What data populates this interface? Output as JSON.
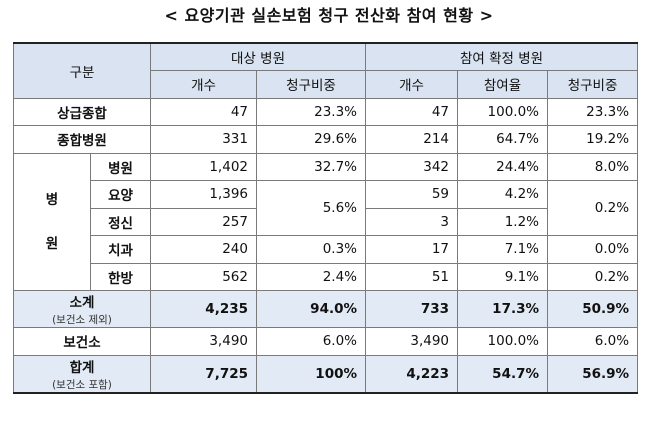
{
  "title": "< 요양기관 실손보험 청구 전산화 참여 현황 >",
  "header": {
    "category": "구분",
    "target_group": "대상 병원",
    "confirmed_group": "참여 확정 병원",
    "count": "개수",
    "claim_share": "청구비중",
    "count2": "개수",
    "participation_rate": "참여율",
    "claim_share2": "청구비중"
  },
  "group_label": [
    "병",
    "원"
  ],
  "rows": {
    "r1": {
      "label": "상급종합",
      "t_count": "47",
      "t_share": "23.3%",
      "c_count": "47",
      "c_rate": "100.0%",
      "c_share": "23.3%"
    },
    "r2": {
      "label": "종합병원",
      "t_count": "331",
      "t_share": "29.6%",
      "c_count": "214",
      "c_rate": "64.7%",
      "c_share": "19.2%"
    },
    "r3": {
      "label": "병원",
      "t_count": "1,402",
      "t_share": "32.7%",
      "c_count": "342",
      "c_rate": "24.4%",
      "c_share": "8.0%"
    },
    "r4": {
      "label": "요양",
      "t_count": "1,396",
      "t_share": "5.6%",
      "c_count": "59",
      "c_rate": "4.2%",
      "c_share": "0.2%"
    },
    "r5": {
      "label": "정신",
      "t_count": "257",
      "c_count": "3",
      "c_rate": "1.2%"
    },
    "r6": {
      "label": "치과",
      "t_count": "240",
      "t_share": "0.3%",
      "c_count": "17",
      "c_rate": "7.1%",
      "c_share": "0.0%"
    },
    "r7": {
      "label": "한방",
      "t_count": "562",
      "t_share": "2.4%",
      "c_count": "51",
      "c_rate": "9.1%",
      "c_share": "0.2%"
    },
    "subtotal": {
      "label": "소계",
      "note": "(보건소 제외)",
      "t_count": "4,235",
      "t_share": "94.0%",
      "c_count": "733",
      "c_rate": "17.3%",
      "c_share": "50.9%"
    },
    "health_center": {
      "label": "보건소",
      "t_count": "3,490",
      "t_share": "6.0%",
      "c_count": "3,490",
      "c_rate": "100.0%",
      "c_share": "6.0%"
    },
    "total": {
      "label": "합계",
      "note": "(보건소 포함)",
      "t_count": "7,725",
      "t_share": "100%",
      "c_count": "4,223",
      "c_rate": "54.7%",
      "c_share": "56.9%"
    }
  }
}
